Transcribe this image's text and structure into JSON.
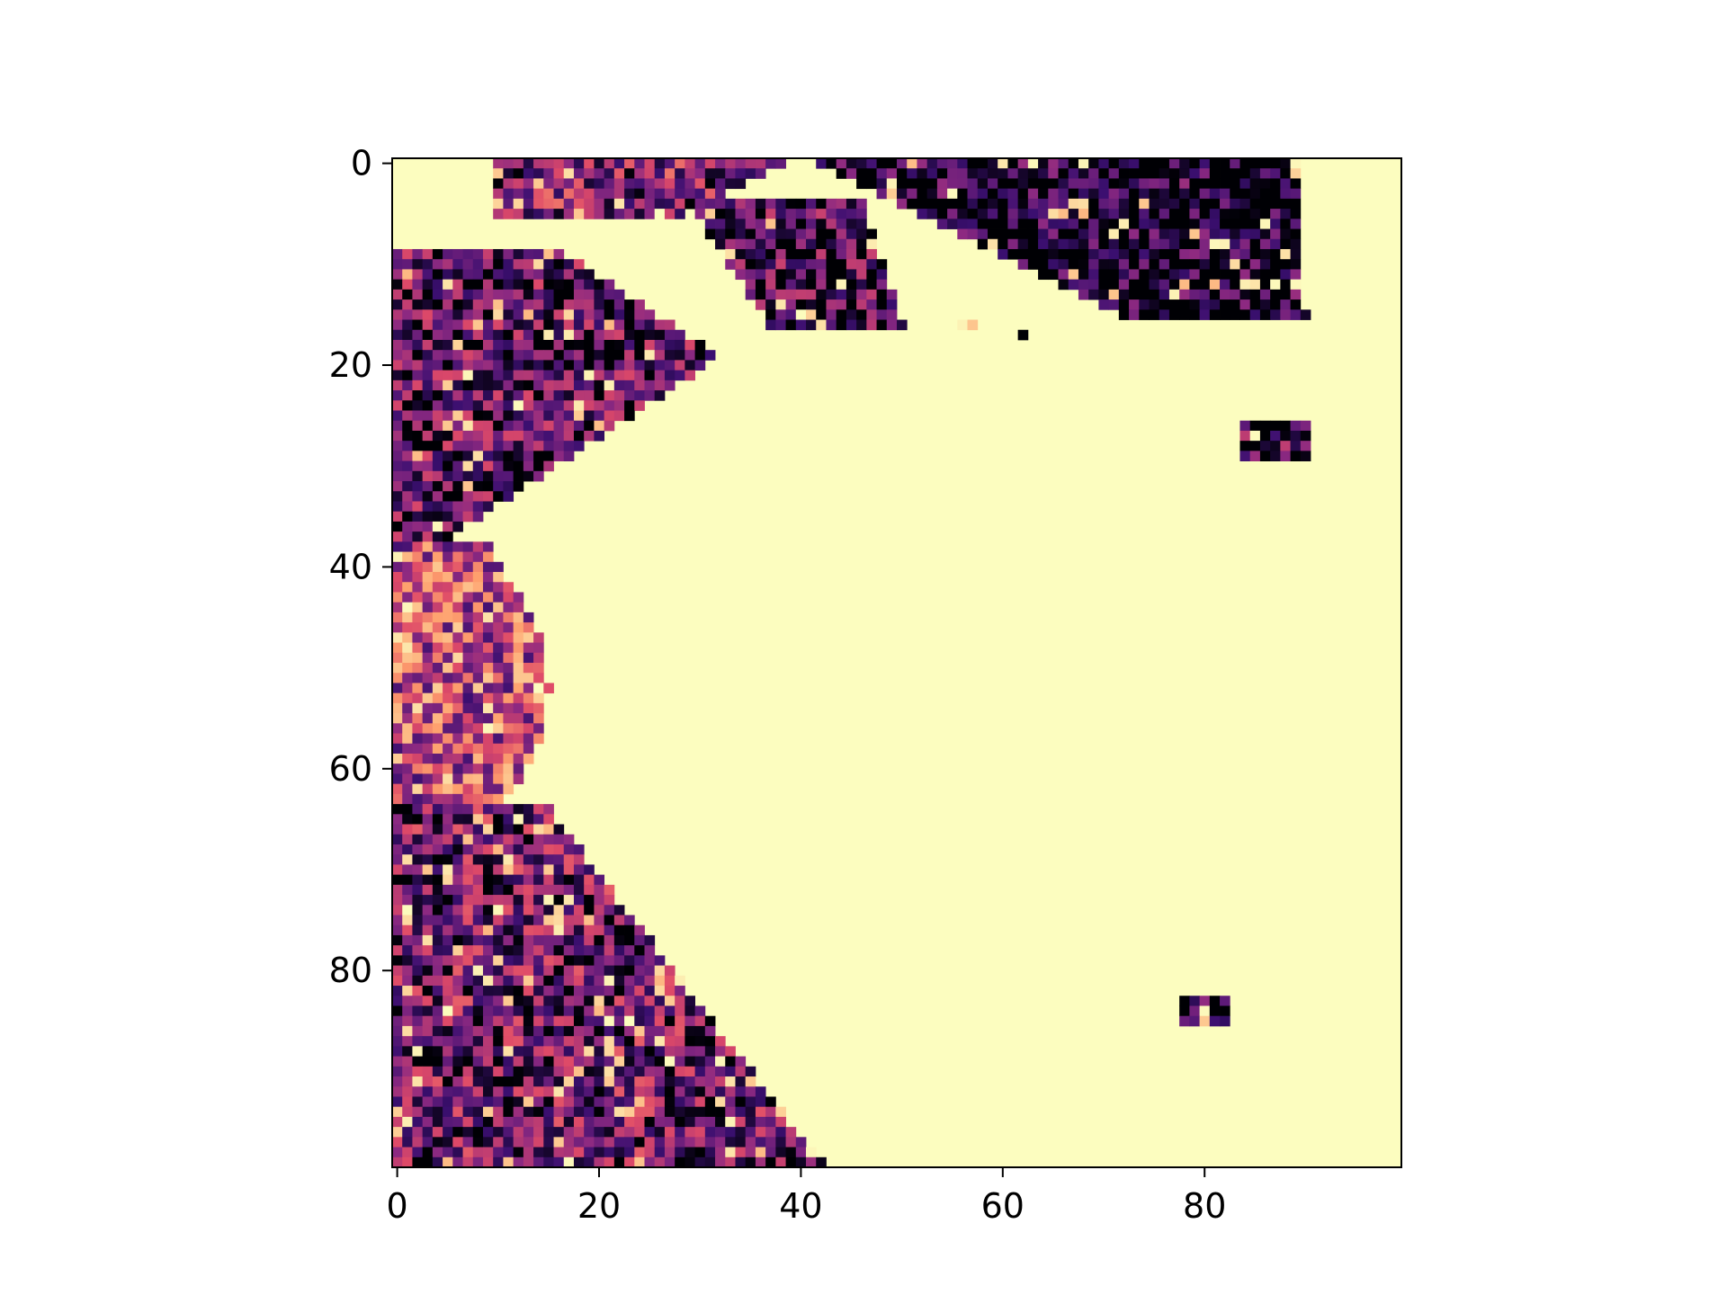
{
  "chart_data": {
    "type": "heatmap",
    "title": "",
    "xlabel": "",
    "ylabel": "",
    "grid_size": 100,
    "x_range": [
      -0.5,
      99.5
    ],
    "y_range": [
      -0.5,
      99.5
    ],
    "y_axis_inverted": true,
    "colormap": "magma",
    "colormap_stops": [
      "#000004",
      "#3b0f70",
      "#8c2981",
      "#de4968",
      "#fe9f6d",
      "#fcfdbf"
    ],
    "background_value": 1.0,
    "x_ticks": [
      {
        "value": 0,
        "label": "0"
      },
      {
        "value": 20,
        "label": "20"
      },
      {
        "value": 40,
        "label": "40"
      },
      {
        "value": 60,
        "label": "60"
      },
      {
        "value": 80,
        "label": "80"
      }
    ],
    "y_ticks": [
      {
        "value": 0,
        "label": "0"
      },
      {
        "value": 20,
        "label": "20"
      },
      {
        "value": 40,
        "label": "40"
      },
      {
        "value": 60,
        "label": "60"
      },
      {
        "value": 80,
        "label": "80"
      }
    ],
    "regions": [
      {
        "name": "top-band-left",
        "cols": [
          10,
          38
        ],
        "rows": [
          0,
          5
        ],
        "mean": 0.35
      },
      {
        "name": "top-band-right",
        "cols": [
          42,
          90
        ],
        "rows": [
          0,
          15
        ],
        "mean": 0.08
      },
      {
        "name": "top-middle-blob",
        "cols": [
          29,
          54
        ],
        "rows": [
          4,
          16
        ],
        "mean": 0.2
      },
      {
        "name": "left-upper-triangle",
        "cols": [
          0,
          32
        ],
        "rows": [
          9,
          38
        ],
        "mean": 0.25
      },
      {
        "name": "left-middle-strip",
        "cols": [
          0,
          15
        ],
        "rows": [
          38,
          66
        ],
        "mean": 0.55
      },
      {
        "name": "left-lower-cluster",
        "cols": [
          0,
          42
        ],
        "rows": [
          64,
          99
        ],
        "mean": 0.3
      },
      {
        "name": "spot-a",
        "cols": [
          56,
          57
        ],
        "rows": [
          16,
          16
        ],
        "mean": 0.05
      },
      {
        "name": "spot-b",
        "cols": [
          62,
          62
        ],
        "rows": [
          17,
          17
        ],
        "mean": 0.05
      },
      {
        "name": "spot-c",
        "cols": [
          84,
          90
        ],
        "rows": [
          26,
          29
        ],
        "mean": 0.2
      },
      {
        "name": "spot-d",
        "cols": [
          78,
          82
        ],
        "rows": [
          83,
          85
        ],
        "mean": 0.15
      }
    ]
  }
}
